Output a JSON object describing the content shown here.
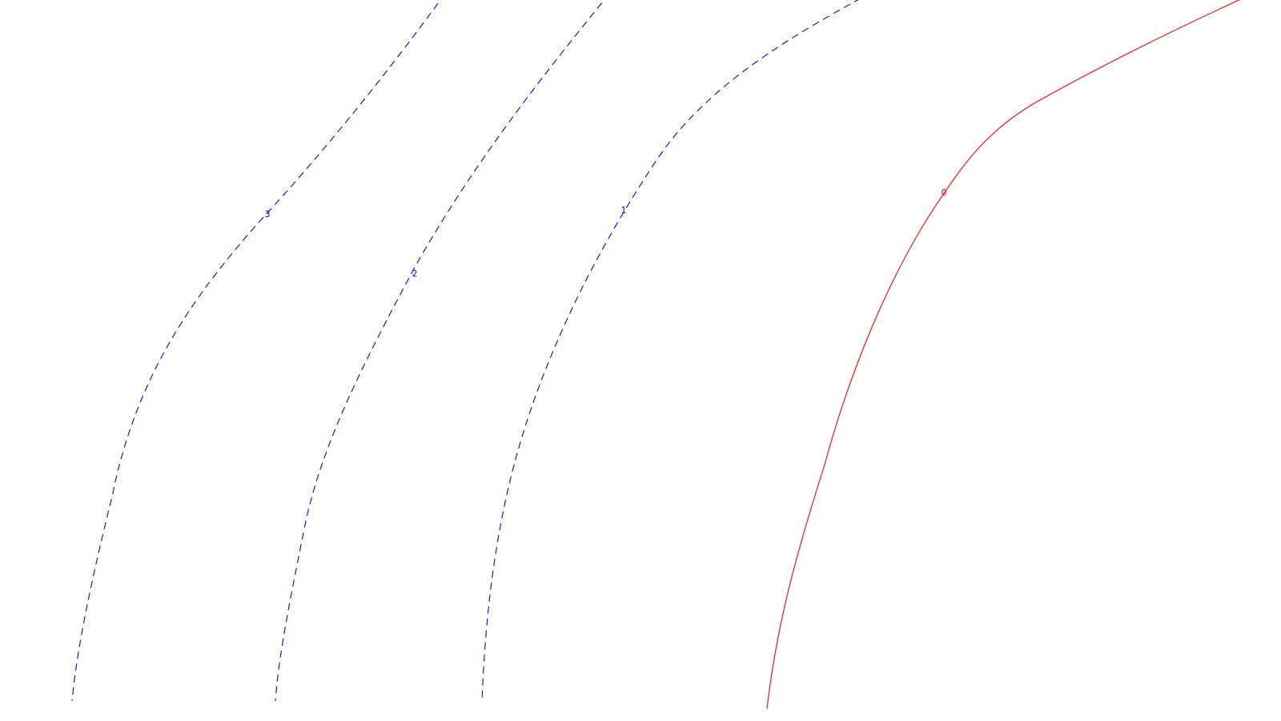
{
  "chart_data": {
    "type": "contour",
    "title": "",
    "xlabel": "",
    "ylabel": "",
    "grid": false,
    "legend": "none",
    "colors": {
      "negative": "#0000ff",
      "zero": "#ff0000"
    },
    "contours": [
      {
        "label": "3",
        "style": "dashed",
        "color": "#0000ff"
      },
      {
        "label": "2",
        "style": "dashed",
        "color": "#0000ff"
      },
      {
        "label": "1",
        "style": "dashed",
        "color": "#0000ff"
      },
      {
        "label": "0",
        "style": "solid",
        "color": "#ff0000"
      }
    ]
  }
}
